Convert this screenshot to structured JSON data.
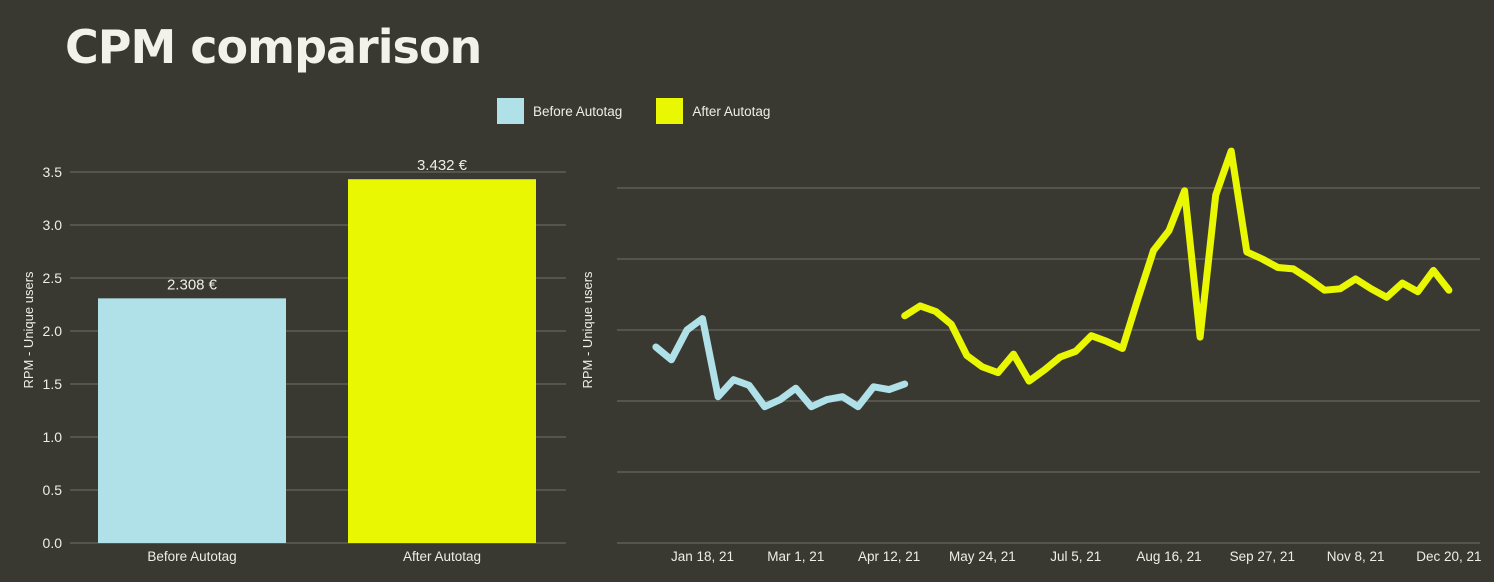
{
  "page": {
    "title": "CPM comparison"
  },
  "theme": {
    "background": "#393932",
    "text": "#efeee6",
    "title_color": "#f2f1ea",
    "grid": "#55544d",
    "before_color": "#b0e0e8",
    "after_color": "#e9f702"
  },
  "legend": {
    "items": [
      {
        "label": "Before Autotag",
        "color": "#b0e0e8"
      },
      {
        "label": "After Autotag",
        "color": "#e9f702"
      }
    ]
  },
  "chart_data": [
    {
      "type": "bar",
      "title": "",
      "ylabel": "RPM - Unique users",
      "categories": [
        "Before Autotag",
        "After Autotag"
      ],
      "values": [
        2.308,
        3.432
      ],
      "value_labels": [
        "2.308 €",
        "3.432 €"
      ],
      "colors": [
        "#b0e0e8",
        "#e9f702"
      ],
      "ylim": [
        0,
        3.5
      ],
      "yticks": [
        "0.0",
        "0.5",
        "1.0",
        "1.5",
        "2.0",
        "2.5",
        "3.0",
        "3.5"
      ],
      "grid": true,
      "legend_position": "top"
    },
    {
      "type": "line",
      "title": "",
      "ylabel": "RPM - Unique users",
      "x_unit": "week_index_2021",
      "xlim": [
        -2.5,
        53
      ],
      "ylim": [
        0,
        2.84
      ],
      "gridline_values": [
        0,
        0.5,
        1.0,
        1.5,
        2.0,
        2.5
      ],
      "grid": true,
      "y_tick_labels_visible": false,
      "xticks": [
        {
          "x": 3,
          "label": "Jan 18, 21"
        },
        {
          "x": 9,
          "label": "Mar 1, 21"
        },
        {
          "x": 15,
          "label": "Apr 12, 21"
        },
        {
          "x": 21,
          "label": "May 24, 21"
        },
        {
          "x": 27,
          "label": "Jul 5, 21"
        },
        {
          "x": 33,
          "label": "Aug 16, 21"
        },
        {
          "x": 39,
          "label": "Sep 27, 21"
        },
        {
          "x": 45,
          "label": "Nov 8, 21"
        },
        {
          "x": 51,
          "label": "Dec 20, 21"
        }
      ],
      "series": [
        {
          "name": "Before Autotag",
          "color": "#b0e0e8",
          "start_week": 0,
          "values": [
            1.38,
            1.29,
            1.5,
            1.58,
            1.03,
            1.15,
            1.11,
            0.96,
            1.01,
            1.09,
            0.96,
            1.01,
            1.03,
            0.96,
            1.1,
            1.08,
            1.12
          ]
        },
        {
          "name": "After Autotag",
          "color": "#e9f702",
          "start_week": 16,
          "values": [
            1.6,
            1.67,
            1.63,
            1.54,
            1.32,
            1.24,
            1.2,
            1.33,
            1.14,
            1.22,
            1.31,
            1.35,
            1.46,
            1.42,
            1.37,
            1.72,
            2.06,
            2.2,
            2.48,
            1.45,
            2.45,
            2.76,
            2.05,
            2.0,
            1.94,
            1.93,
            1.86,
            1.78,
            1.79,
            1.86,
            1.79,
            1.73,
            1.83,
            1.77,
            1.92,
            1.78
          ]
        }
      ]
    }
  ]
}
